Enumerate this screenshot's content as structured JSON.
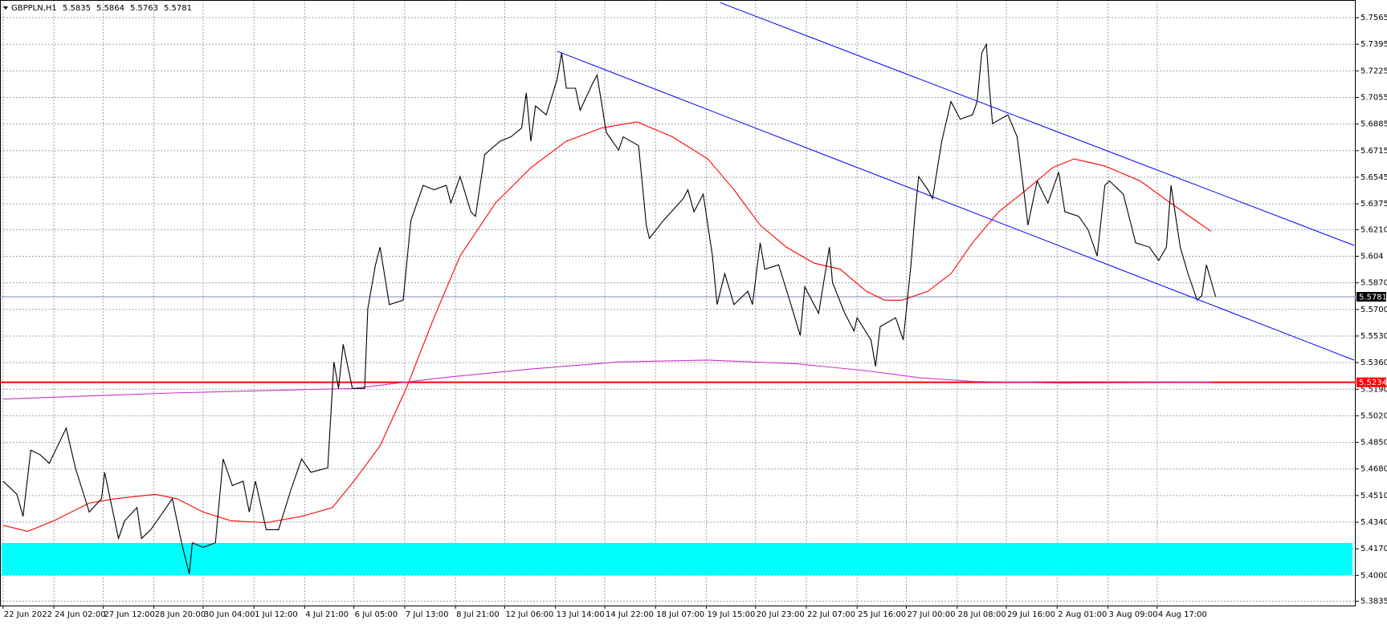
{
  "chart_data": {
    "type": "line",
    "symbol": "GBPPLN,H1",
    "ohlc": [
      5.5835,
      5.5864,
      5.5763,
      5.5781
    ],
    "xlim": [
      -2,
      879
    ],
    "ylim": [
      5.3807,
      5.7678
    ],
    "grid": true,
    "xticks": [
      {
        "value": 0,
        "label": "22 Jun 2022"
      },
      {
        "value": 33,
        "label": "24 Jun 02:00"
      },
      {
        "value": 65,
        "label": "27 Jun 12:00"
      },
      {
        "value": 98,
        "label": "28 Jun 20:00"
      },
      {
        "value": 130,
        "label": "30 Jun 04:00"
      },
      {
        "value": 163,
        "label": "1 Jul 12:00"
      },
      {
        "value": 196,
        "label": "4 Jul 21:00"
      },
      {
        "value": 228,
        "label": "6 Jul 05:00"
      },
      {
        "value": 261,
        "label": "7 Jul 13:00"
      },
      {
        "value": 294,
        "label": "8 Jul 21:00"
      },
      {
        "value": 326,
        "label": "12 Jul 06:00"
      },
      {
        "value": 359,
        "label": "13 Jul 14:00"
      },
      {
        "value": 391,
        "label": "14 Jul 22:00"
      },
      {
        "value": 424,
        "label": "18 Jul 07:00"
      },
      {
        "value": 457,
        "label": "19 Jul 15:00"
      },
      {
        "value": 489,
        "label": "20 Jul 23:00"
      },
      {
        "value": 522,
        "label": "22 Jul 07:00"
      },
      {
        "value": 555,
        "label": "25 Jul 16:00"
      },
      {
        "value": 587,
        "label": "27 Jul 00:00"
      },
      {
        "value": 620,
        "label": "28 Jul 08:00"
      },
      {
        "value": 652,
        "label": "29 Jul 16:00"
      },
      {
        "value": 685,
        "label": "2 Aug 01:00"
      },
      {
        "value": 718,
        "label": "3 Aug 09:00"
      },
      {
        "value": 750,
        "label": "4 Aug 17:00"
      }
    ],
    "yticks": [
      5.7565,
      5.7395,
      5.7225,
      5.7055,
      5.6885,
      5.6715,
      5.6545,
      5.6375,
      {
        "value": 5.621,
        "label": "5.6210"
      },
      5.604,
      {
        "value": 5.587,
        "label": "5.5870"
      },
      {
        "value": 5.57,
        "label": "5.5700"
      },
      {
        "value": 5.553,
        "label": "5.5530"
      },
      {
        "value": 5.536,
        "label": "5.5360"
      },
      {
        "value": 5.519,
        "label": "5.5190"
      },
      {
        "value": 5.502,
        "label": "5.5020"
      },
      {
        "value": 5.485,
        "label": "5.4850"
      },
      {
        "value": 5.468,
        "label": "5.4680"
      },
      {
        "value": 5.451,
        "label": "5.4510"
      },
      {
        "value": 5.434,
        "label": "5.4340"
      },
      {
        "value": 5.417,
        "label": "5.4170"
      },
      {
        "value": 5.4,
        "label": "5.4000"
      },
      5.3835
    ],
    "zones": [
      {
        "color": "#00ffff",
        "x": [
          -1,
          877
        ],
        "from": 5.4,
        "to": 5.4207
      }
    ],
    "series": [
      {
        "color": "#ff0000",
        "x": [
          0,
          16,
          33,
          56,
          73,
          99,
          113,
          130,
          148,
          171,
          194,
          214,
          228,
          245,
          262,
          280,
          297,
          320,
          343,
          366,
          389,
          412,
          435,
          458,
          475,
          492,
          509,
          527,
          544,
          561,
          573,
          584,
          601,
          616,
          630,
          647,
          665,
          682,
          696,
          716,
          739,
          757,
          771,
          785
        ],
        "values": [
          5.432,
          5.4281,
          5.4349,
          5.4462,
          5.449,
          5.4518,
          5.449,
          5.4405,
          5.4349,
          5.4337,
          5.4377,
          5.4433,
          5.4602,
          5.4828,
          5.5195,
          5.5647,
          5.6042,
          5.638,
          5.6606,
          5.6775,
          5.686,
          5.6899,
          5.6803,
          5.6662,
          5.6465,
          5.6239,
          5.6098,
          5.5996,
          5.5957,
          5.5816,
          5.5759,
          5.5759,
          5.5816,
          5.5929,
          5.6126,
          5.6324,
          5.6465,
          5.6606,
          5.6662,
          5.6617,
          5.6521,
          5.6392,
          5.6295,
          5.62
        ]
      },
      {
        "color": "#cc33cc",
        "x": [
          0,
          113,
          228,
          285,
          343,
          400,
          458,
          515,
          561,
          596,
          630,
          688,
          785
        ],
        "values": [
          5.5127,
          5.5167,
          5.5195,
          5.5263,
          5.5319,
          5.5364,
          5.5376,
          5.5353,
          5.5308,
          5.5263,
          5.524,
          5.5229,
          5.5234
        ]
      },
      {
        "color": "#000000",
        "x": [
          0,
          9,
          13,
          18,
          24,
          30,
          41,
          47,
          56,
          64,
          66,
          75,
          79,
          87,
          90,
          96,
          110,
          116,
          121,
          123,
          130,
          138,
          143,
          149,
          156,
          160,
          164,
          171,
          179,
          187,
          194,
          200,
          211,
          215,
          218,
          221,
          227,
          235,
          237,
          242,
          245,
          251,
          260,
          265,
          273,
          280,
          288,
          291,
          297,
          304,
          307,
          313,
          323,
          330,
          337,
          340,
          343,
          346,
          353,
          360,
          363,
          366,
          372,
          375,
          383,
          386,
          392,
          400,
          403,
          413,
          418,
          420,
          429,
          442,
          445,
          449,
          455,
          461,
          464,
          469,
          475,
          484,
          487,
          492,
          495,
          504,
          512,
          518,
          521,
          530,
          537,
          539,
          547,
          553,
          555,
          564,
          567,
          570,
          580,
          585,
          590,
          593,
          595,
          601,
          604,
          610,
          616,
          622,
          630,
          633,
          636,
          639,
          641,
          643,
          653,
          659,
          665,
          666,
          672,
          679,
          686,
          690,
          699,
          705,
          711,
          716,
          719,
          728,
          736,
          745,
          751,
          756,
          759,
          765,
          770,
          776,
          779,
          782,
          788
        ],
        "values": [
          5.4602,
          5.4518,
          5.4377,
          5.48,
          5.4772,
          5.4716,
          5.4941,
          5.4687,
          5.4405,
          5.449,
          5.4659,
          5.4236,
          5.4349,
          5.4433,
          5.4236,
          5.4292,
          5.449,
          5.4208,
          5.401,
          5.4208,
          5.4179,
          5.4208,
          5.4744,
          5.4574,
          5.4602,
          5.4405,
          5.4602,
          5.4292,
          5.4292,
          5.4546,
          5.4744,
          5.4659,
          5.4687,
          5.5364,
          5.5195,
          5.5477,
          5.5195,
          5.5195,
          5.5703,
          5.5985,
          5.6098,
          5.5731,
          5.5759,
          5.6267,
          5.6493,
          5.6465,
          5.6493,
          5.638,
          5.6549,
          5.6324,
          5.6295,
          5.669,
          5.6775,
          5.6803,
          5.686,
          5.7085,
          5.6775,
          5.7001,
          5.6944,
          5.717,
          5.7339,
          5.7114,
          5.7114,
          5.6973,
          5.7142,
          5.7198,
          5.6832,
          5.6719,
          5.6803,
          5.6747,
          5.6239,
          5.6154,
          5.6267,
          5.6408,
          5.6465,
          5.6324,
          5.6437,
          5.6042,
          5.5731,
          5.5929,
          5.5731,
          5.5816,
          5.5731,
          5.6126,
          5.5957,
          5.5985,
          5.5731,
          5.5534,
          5.5844,
          5.5675,
          5.6098,
          5.5872,
          5.5675,
          5.5562,
          5.5647,
          5.5505,
          5.5336,
          5.559,
          5.5647,
          5.5505,
          5.5985,
          5.6352,
          5.6549,
          5.6465,
          5.6408,
          5.6775,
          5.7029,
          5.6916,
          5.6944,
          5.7029,
          5.7339,
          5.7396,
          5.7114,
          5.6888,
          5.6944,
          5.6803,
          5.6324,
          5.6239,
          5.6521,
          5.638,
          5.6578,
          5.6324,
          5.6295,
          5.6211,
          5.6042,
          5.6493,
          5.6521,
          5.6437,
          5.6126,
          5.6098,
          5.6013,
          5.6098,
          5.6493,
          5.6098,
          5.5929,
          5.5759,
          5.5788,
          5.5985,
          5.5781
        ]
      }
    ],
    "trendlines": [
      {
        "color": "#0000ff",
        "x": [
          466,
          878
        ],
        "values": [
          5.7661,
          5.6109
        ]
      },
      {
        "color": "#0000ff",
        "x": [
          360,
          878
        ],
        "values": [
          5.7351,
          5.5376
        ]
      }
    ],
    "hlines": [
      {
        "value": 5.5234,
        "color": "#ff0000"
      },
      {
        "value": 5.5781,
        "color": "#7d8fb0"
      }
    ]
  }
}
